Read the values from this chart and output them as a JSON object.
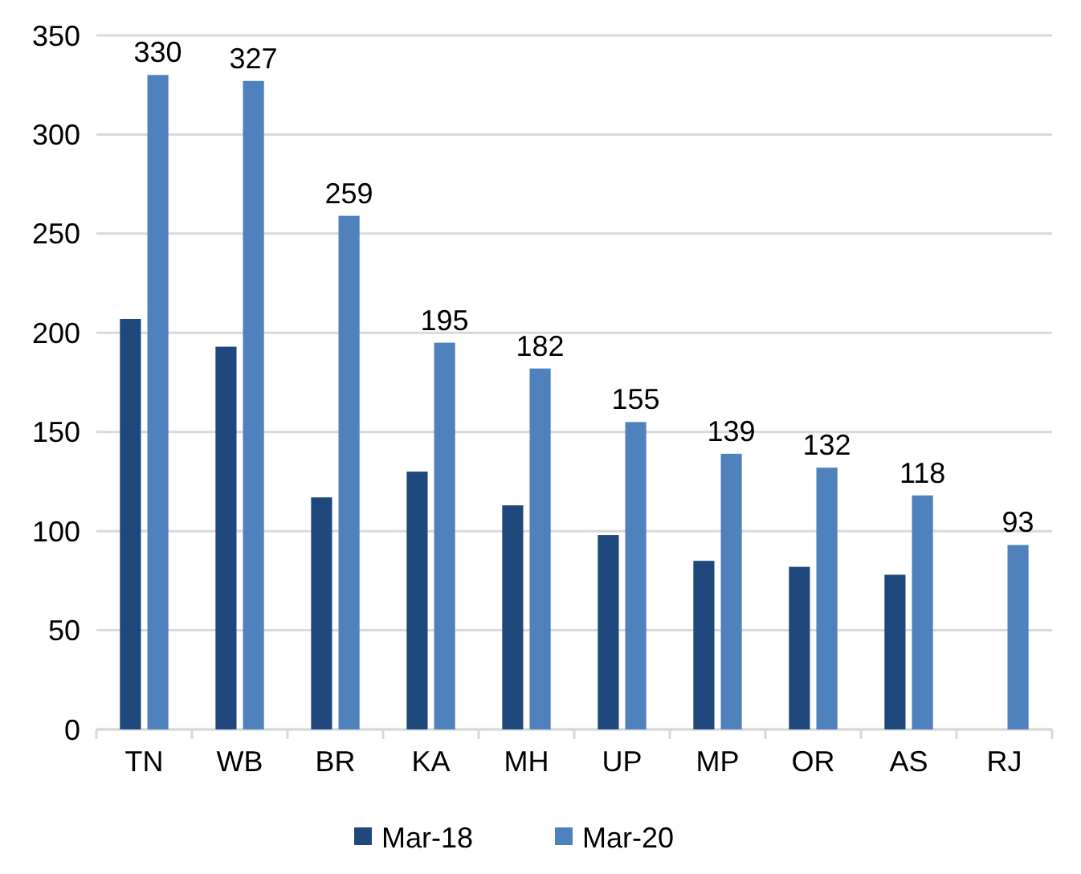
{
  "chart_data": {
    "type": "bar",
    "categories": [
      "TN",
      "WB",
      "BR",
      "KA",
      "MH",
      "UP",
      "MP",
      "OR",
      "AS",
      "RJ"
    ],
    "series": [
      {
        "name": "Mar-18",
        "color": "#1f497d",
        "values": [
          207,
          193,
          117,
          130,
          113,
          98,
          85,
          82,
          78,
          null
        ]
      },
      {
        "name": "Mar-20",
        "color": "#4f81bd",
        "values": [
          330,
          327,
          259,
          195,
          182,
          155,
          139,
          132,
          118,
          93
        ],
        "value_labels": [
          "330",
          "327",
          "259",
          "195",
          "182",
          "155",
          "139",
          "132",
          "118",
          "93"
        ]
      }
    ],
    "ylim": [
      0,
      350
    ],
    "yticks": [
      0,
      50,
      100,
      150,
      200,
      250,
      300,
      350
    ],
    "grid": "y",
    "legend": "bottom"
  }
}
